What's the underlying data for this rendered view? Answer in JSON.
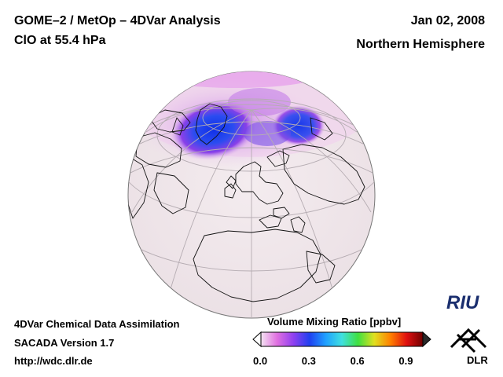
{
  "header": {
    "title": "GOME–2 / MetOp – 4DVar Analysis",
    "subtitle": "ClO at 55.4 hPa",
    "date": "Jan 02, 2008",
    "region": "Northern Hemisphere"
  },
  "footer": {
    "line1": "4DVar Chemical Data Assimilation",
    "line2": "SACADA Version 1.7",
    "line3": "http://wdc.dlr.de"
  },
  "colorbar": {
    "title": "Volume Mixing Ratio [ppbv]",
    "ticks": [
      "0.0",
      "0.3",
      "0.6",
      "0.9"
    ],
    "range": [
      0.0,
      1.0
    ],
    "colors": [
      "#f4e4f2",
      "#e070e0",
      "#9040f0",
      "#2040f0",
      "#20a0ff",
      "#40e0e0",
      "#40e040",
      "#e0e020",
      "#ff8000",
      "#e01010",
      "#700000"
    ]
  },
  "logos": {
    "riu": "RIU",
    "dlr": "DLR"
  },
  "map": {
    "projection": "orthographic",
    "colors": {
      "land": "#f1e8ec",
      "ocean": "#f1e8ec",
      "coast": "#111111",
      "grid": "#b8b0b4"
    }
  }
}
